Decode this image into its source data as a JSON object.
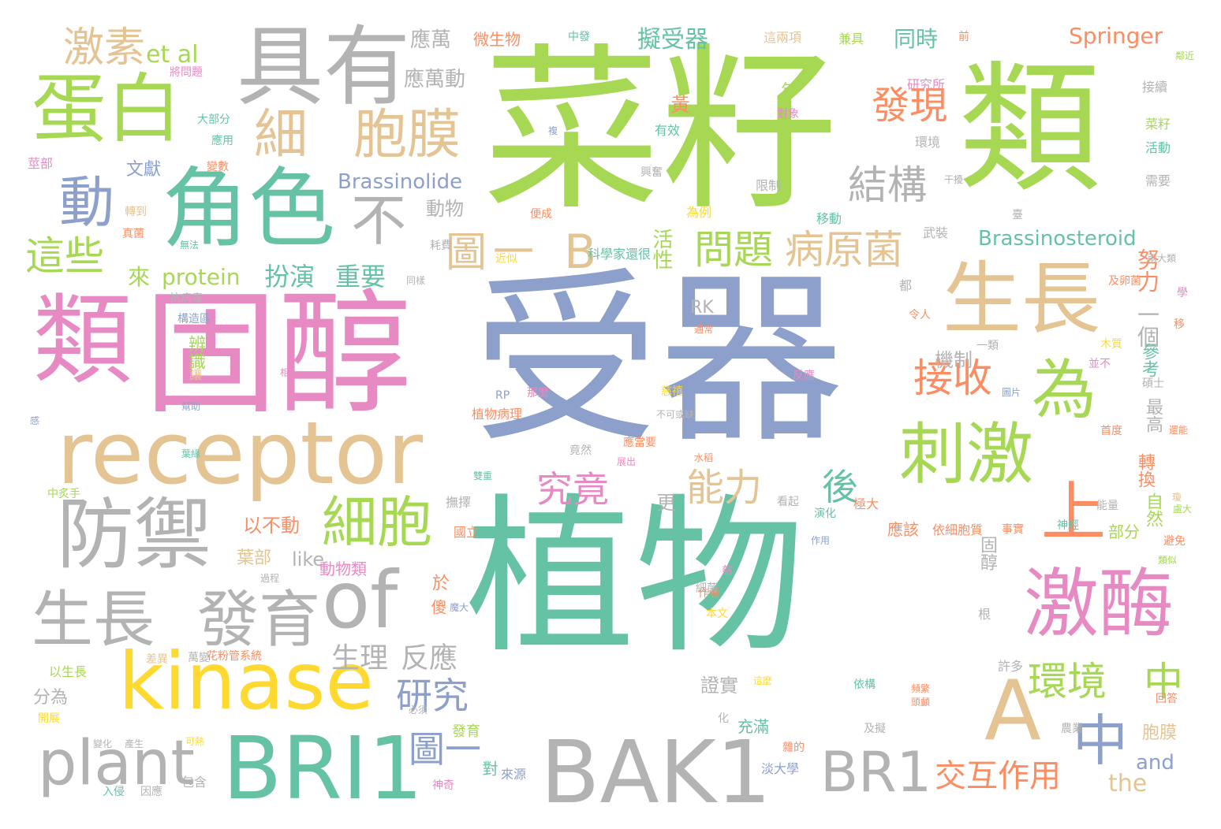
{
  "palette": {
    "c1": "#66c2a5",
    "c2": "#fc8d62",
    "c3": "#8da0cb",
    "c4": "#e78ac3",
    "c5": "#a6d854",
    "c6": "#ffd92f",
    "c7": "#e5c494",
    "c8": "#b3b3b3"
  },
  "words": {
    "w1": "植物",
    "w2": "受器",
    "w3": "菜籽",
    "w4": "類",
    "w5": "類",
    "w6": "固醇",
    "w7": "receptor",
    "w8": "kinase",
    "w9": "BRI1",
    "w10": "BAK1",
    "w11": "具有",
    "w12": "角色",
    "w13": "蛋白",
    "w14": "防禦",
    "w15": "生長",
    "w16": "刺激",
    "w17": "激酶",
    "w18": "生長",
    "w19": "發育",
    "w20": "of",
    "w21": "plant",
    "w22": "BR1",
    "w23": "A",
    "w24": "細",
    "w25": "胞膜",
    "w26": "細胞",
    "w27": "為",
    "w28": "上",
    "w29": "中",
    "w30": "環境",
    "w31": "中",
    "w32": "激素",
    "w33": "et al",
    "w34": "動",
    "w35": "這些",
    "w36": "不",
    "w37": "結構",
    "w38": "發現",
    "w39": "接收",
    "w40": "問題",
    "w41": "病原菌",
    "w42": "圖",
    "w43": "一",
    "w44": "B",
    "w45": "能力",
    "w46": "究竟",
    "w47": "後",
    "w48": "研究",
    "w49": "圖一",
    "w50": "交互作用",
    "w51": "生理",
    "w52": "反應",
    "w53": "扮演",
    "w54": "重要",
    "w55": "來",
    "w56": "protein",
    "w57": "Springer",
    "w58": "Brassinolide",
    "w59": "Brassinosteroid",
    "w60": "擬受器",
    "w61": "同時",
    "w62": "應萬",
    "w63": "應萬動",
    "w64": "微生物",
    "w65": "文獻",
    "w66": "動物",
    "w67": "活性",
    "w68": "努力",
    "w69": "一個",
    "w70": "參考",
    "w71": "RK",
    "w72": "辨識",
    "w73": "機制",
    "w74": "固醇",
    "w75": "最高",
    "w76": "轉換",
    "w77": "自然",
    "w78": "以不動",
    "w79": "更",
    "w80": "部分",
    "w81": "應該",
    "w82": "依細胞質",
    "w83": "事實",
    "w84": "like",
    "w85": "葉部",
    "w86": "動物類",
    "w87": "於",
    "w88": "證實",
    "w89": "分為",
    "w90": "充滿",
    "w91": "and",
    "w92": "the",
    "w93": "胞膜",
    "w94": "研究所",
    "w95": "中發",
    "w96": "這兩項",
    "w97": "兼具",
    "w98": "前",
    "w99": "將問題",
    "w100": "大部分",
    "w101": "應用",
    "w102": "莖部",
    "w103": "變數",
    "w104": "轉到",
    "w105": "真菌",
    "w106": "無法",
    "w107": "耗費",
    "w108": "近似",
    "w109": "科學家還很",
    "w110": "兩大類",
    "w111": "及卵菌",
    "w112": "抗病毒",
    "w113": "構造區",
    "w114": "看起",
    "w115": "能量",
    "w116": "演化",
    "w117": "作用",
    "w118": "許多",
    "w119": "依構",
    "w120": "頻繁",
    "w121": "回答",
    "w122": "農業",
    "w123": "神經",
    "w124": "類似",
    "w125": "避免",
    "w126": "以生長",
    "w127": "差異",
    "w128": "萬變",
    "w129": "花粉管系統",
    "w130": "開展",
    "w131": "變化",
    "w132": "產生",
    "w133": "可熱",
    "w134": "入侵",
    "w135": "因應",
    "w136": "包含",
    "w137": "神奇",
    "w138": "必須",
    "w139": "發育",
    "w140": "對",
    "w141": "來源",
    "w142": "淡大學",
    "w143": "雜的",
    "w144": "及擬",
    "w145": "中炙手",
    "w146": "國立",
    "w147": "撫擇",
    "w148": "竟然",
    "w149": "應當要",
    "w150": "展出",
    "w151": "極大",
    "w152": "水稻",
    "w153": "首度",
    "w154": "還能",
    "w155": "木質",
    "w156": "並不",
    "w157": "一類",
    "w158": "反應",
    "w159": "圖片",
    "w160": "碩士",
    "w161": "令人",
    "w162": "通常",
    "w163": "都",
    "w164": "學",
    "w165": "移",
    "w166": "武裝",
    "w167": "臺",
    "w168": "移動",
    "w169": "限制",
    "w170": "興奮",
    "w171": "干擾",
    "w172": "需要",
    "w173": "活動",
    "w174": "菜籽",
    "w175": "接續",
    "w176": "鄰近",
    "w177": "對象",
    "w178": "有效",
    "w179": "環境",
    "w180": "複",
    "w181": "便成",
    "w182": "為例",
    "w183": "同樣",
    "w184": "黃",
    "w185": "年",
    "w186": "讓",
    "w187": "幫助",
    "w188": "葉緣",
    "w189": "相",
    "w190": "RP",
    "w191": "那麼",
    "w192": "慈禧",
    "w193": "不可或缺",
    "w194": "植物病理",
    "w195": "作者",
    "w196": "本文",
    "w197": "細菌",
    "w198": "慈",
    "w199": "化",
    "w200": "根",
    "w201": "過程",
    "w202": "雙重",
    "w203": "這麼",
    "w204": "感",
    "w205": "頭顱",
    "w206": "瓊",
    "w207": "魔大",
    "w208": "傻",
    "w209": "盧大"
  }
}
